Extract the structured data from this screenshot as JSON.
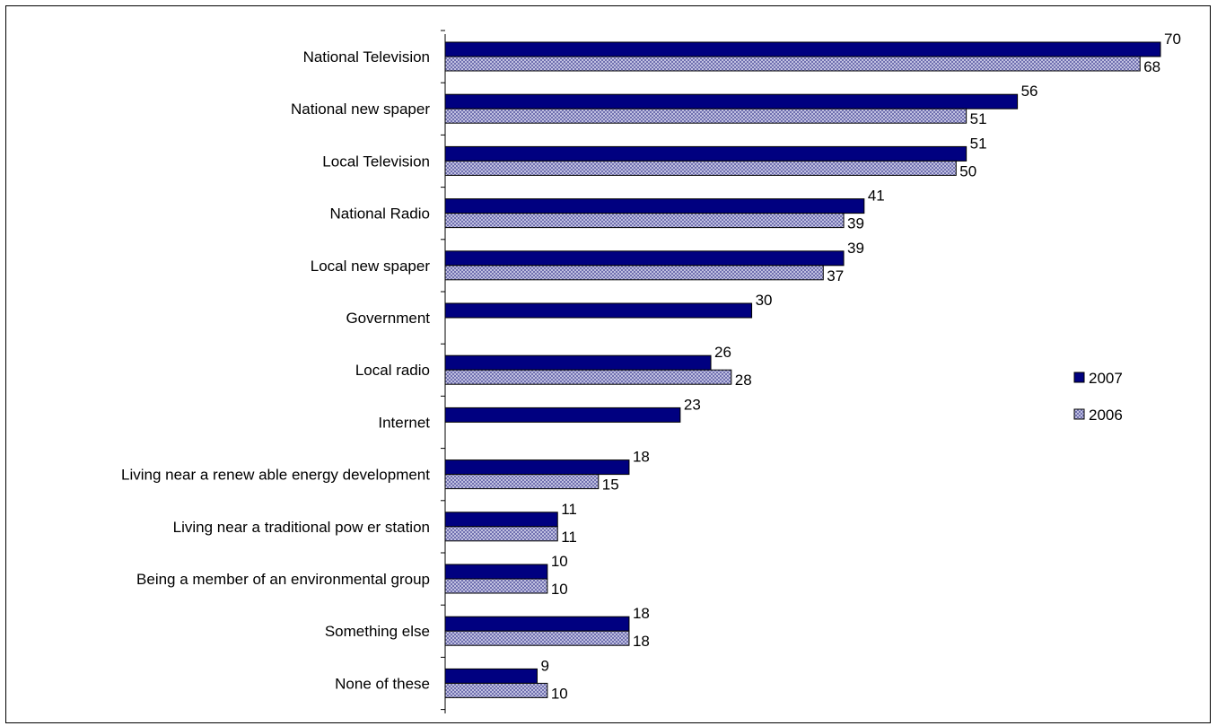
{
  "chart_data": {
    "type": "bar",
    "orientation": "horizontal",
    "categories": [
      "National Television",
      "National new spaper",
      "Local Television",
      "National Radio",
      "Local new spaper",
      "Government",
      "Local radio",
      "Internet",
      "Living near a renew able energy development",
      "Living near a traditional pow er station",
      "Being a member of an environmental group",
      "Something else",
      "None of these"
    ],
    "series": [
      {
        "name": "2007",
        "values": [
          70,
          56,
          51,
          41,
          39,
          30,
          26,
          23,
          18,
          11,
          10,
          18,
          9
        ],
        "color": "#000080",
        "fill": "solid"
      },
      {
        "name": "2006",
        "values": [
          68,
          51,
          50,
          39,
          37,
          null,
          28,
          null,
          15,
          11,
          10,
          18,
          10
        ],
        "color": "#9999cc",
        "fill": "crosshatch"
      }
    ],
    "xlim": [
      0,
      70
    ],
    "grid": false,
    "legend": "right",
    "title": "",
    "xlabel": "",
    "ylabel": ""
  }
}
